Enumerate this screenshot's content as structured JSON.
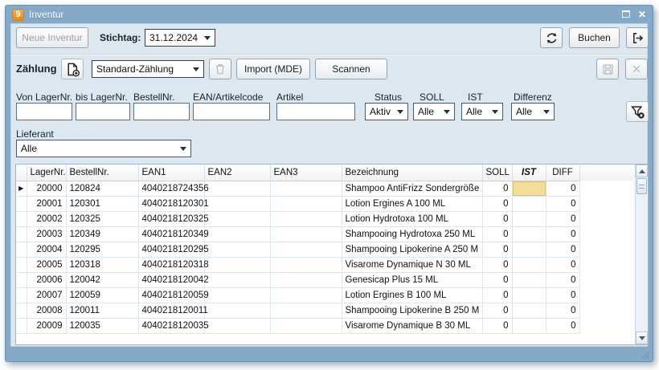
{
  "window": {
    "title": "Inventur",
    "icon_text": "9"
  },
  "icons": {
    "app": "app-icon-9",
    "maximize": "maximize-icon",
    "close": "close-icon",
    "refresh": "refresh-circular-arrows-icon",
    "exit": "exit-arrow-icon",
    "new_count": "new-document-plus-icon",
    "delete_count": "trash-icon",
    "save": "floppy-disk-icon",
    "cancel": "x-mark-icon",
    "filter_clear": "funnel-clear-icon",
    "row_selector": "right-arrow-marker",
    "resize": "resize-grip"
  },
  "toolbar": {
    "new_inventory": "Neue Inventur",
    "stichtag_label": "Stichtag:",
    "stichtag_value": "31.12.2024",
    "buchen": "Buchen"
  },
  "zaehlung": {
    "label": "Zählung",
    "type_value": "Standard-Zählung",
    "import_label": "Import (MDE)",
    "scannen_label": "Scannen"
  },
  "filters": {
    "fields": [
      {
        "label": "Von LagerNr.",
        "value": ""
      },
      {
        "label": "bis LagerNr.",
        "value": ""
      },
      {
        "label": "BestellNr.",
        "value": ""
      },
      {
        "label": "EAN/Artikelcode",
        "value": ""
      },
      {
        "label": "Artikel",
        "value": ""
      }
    ],
    "dropdowns": [
      {
        "label": "Status",
        "value": "Aktiv"
      },
      {
        "label": "SOLL",
        "value": "Alle"
      },
      {
        "label": "IST",
        "value": "Alle"
      },
      {
        "label": "Differenz",
        "value": "Alle"
      }
    ],
    "lieferant_label": "Lieferant",
    "lieferant_value": "Alle"
  },
  "table": {
    "columns": [
      {
        "key": "selector",
        "label": ""
      },
      {
        "key": "lager",
        "label": "LagerNr."
      },
      {
        "key": "bestell",
        "label": "BestellNr."
      },
      {
        "key": "ean1",
        "label": "EAN1"
      },
      {
        "key": "ean2",
        "label": "EAN2"
      },
      {
        "key": "ean3",
        "label": "EAN3"
      },
      {
        "key": "bezeichnung",
        "label": "Bezeichnung"
      },
      {
        "key": "soll",
        "label": "SOLL"
      },
      {
        "key": "ist",
        "label": "IST"
      },
      {
        "key": "diff",
        "label": "DIFF"
      },
      {
        "key": "filler",
        "label": ""
      }
    ],
    "rows": [
      {
        "selected": true,
        "ist_selected": true,
        "lager": "20000",
        "bestell": "120824",
        "ean1": "4040218724356",
        "ean2": "",
        "ean3": "",
        "bezeichnung": "Shampoo AntiFrizz Sondergröße",
        "soll": "0",
        "ist": "",
        "diff": "0"
      },
      {
        "selected": false,
        "ist_selected": false,
        "lager": "20001",
        "bestell": "120301",
        "ean1": "4040218120301",
        "ean2": "",
        "ean3": "",
        "bezeichnung": "Lotion Ergines A 100 ML",
        "soll": "0",
        "ist": "",
        "diff": "0"
      },
      {
        "selected": false,
        "ist_selected": false,
        "lager": "20002",
        "bestell": "120325",
        "ean1": "4040218120325",
        "ean2": "",
        "ean3": "",
        "bezeichnung": "Lotion Hydrotoxa 100 ML",
        "soll": "0",
        "ist": "",
        "diff": "0"
      },
      {
        "selected": false,
        "ist_selected": false,
        "lager": "20003",
        "bestell": "120349",
        "ean1": "4040218120349",
        "ean2": "",
        "ean3": "",
        "bezeichnung": "Shampooing Hydrotoxa 250 ML",
        "soll": "0",
        "ist": "",
        "diff": "0"
      },
      {
        "selected": false,
        "ist_selected": false,
        "lager": "20004",
        "bestell": "120295",
        "ean1": "4040218120295",
        "ean2": "",
        "ean3": "",
        "bezeichnung": "Shampooing Lipokerine A 250 M",
        "soll": "0",
        "ist": "",
        "diff": "0"
      },
      {
        "selected": false,
        "ist_selected": false,
        "lager": "20005",
        "bestell": "120318",
        "ean1": "4040218120318",
        "ean2": "",
        "ean3": "",
        "bezeichnung": "Visarome Dynamique N 30 ML",
        "soll": "0",
        "ist": "",
        "diff": "0"
      },
      {
        "selected": false,
        "ist_selected": false,
        "lager": "20006",
        "bestell": "120042",
        "ean1": "4040218120042",
        "ean2": "",
        "ean3": "",
        "bezeichnung": "Genesicap Plus 15 ML",
        "soll": "0",
        "ist": "",
        "diff": "0"
      },
      {
        "selected": false,
        "ist_selected": false,
        "lager": "20007",
        "bestell": "120059",
        "ean1": "4040218120059",
        "ean2": "",
        "ean3": "",
        "bezeichnung": "Lotion Ergines B 100 ML",
        "soll": "0",
        "ist": "",
        "diff": "0"
      },
      {
        "selected": false,
        "ist_selected": false,
        "lager": "20008",
        "bestell": "120011",
        "ean1": "4040218120011",
        "ean2": "",
        "ean3": "",
        "bezeichnung": "Shampooing Lipokerine B 250 M",
        "soll": "0",
        "ist": "",
        "diff": "0"
      },
      {
        "selected": false,
        "ist_selected": false,
        "lager": "20009",
        "bestell": "120035",
        "ean1": "4040218120035",
        "ean2": "",
        "ean3": "",
        "bezeichnung": "Visarome Dynamique B 30 ML",
        "soll": "0",
        "ist": "",
        "diff": "0"
      }
    ]
  },
  "colors": {
    "titlebar": "#85aac8",
    "content_bg": "#dde7f0",
    "accent_orange": "#f0921e",
    "selected_cell": "#f2dd9b",
    "grid_line": "#dbe6ef"
  }
}
